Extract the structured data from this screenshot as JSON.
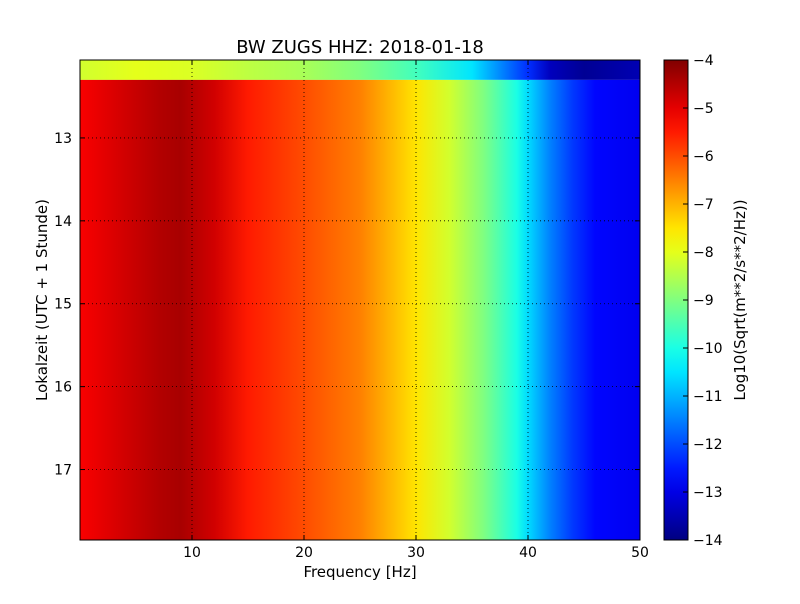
{
  "chart_data": {
    "type": "heatmap",
    "title": "BW ZUGS HHZ: 2018-01-18",
    "xlabel": "Frequency [Hz]",
    "ylabel": "Lokalzeit (UTC + 1 Stunde)",
    "colorbar_label": "Log10(Sqrt(m**2/s**2/Hz))",
    "colormap": "jet",
    "grid": true,
    "xlim": [
      0,
      50
    ],
    "ylim": [
      17.85,
      12.06
    ],
    "clim": [
      -14,
      -4
    ],
    "x_ticks": [
      10,
      20,
      30,
      40,
      50
    ],
    "x_tick_labels": [
      "10",
      "20",
      "30",
      "40",
      "50"
    ],
    "y_ticks": [
      13,
      14,
      15,
      16,
      17
    ],
    "y_tick_labels": [
      "13",
      "14",
      "15",
      "16",
      "17"
    ],
    "colorbar_ticks": [
      -4,
      -5,
      -6,
      -7,
      -8,
      -9,
      -10,
      -11,
      -12,
      -13,
      -14
    ],
    "colorbar_tick_labels": [
      "−4",
      "−5",
      "−6",
      "−7",
      "−8",
      "−9",
      "−10",
      "−11",
      "−12",
      "−13",
      "−14"
    ],
    "band_rows": [
      {
        "time_start": 12.06,
        "time_end": 12.3,
        "freq_hz": [
          0,
          5,
          10,
          15,
          20,
          25,
          30,
          35,
          40,
          42,
          45,
          50
        ],
        "value": [
          -8.2,
          -8.0,
          -8.1,
          -8.4,
          -8.6,
          -9.0,
          -9.6,
          -10.5,
          -12.3,
          -13.4,
          -13.8,
          -13.5
        ]
      },
      {
        "time_start": 12.3,
        "time_end": 17.85,
        "freq_hz": [
          0,
          3,
          7,
          9,
          12,
          15,
          20,
          25,
          30,
          33,
          36,
          39,
          40,
          42,
          44,
          46,
          50
        ],
        "value": [
          -5.2,
          -4.9,
          -4.5,
          -4.4,
          -4.8,
          -5.5,
          -6.0,
          -6.5,
          -7.5,
          -8.2,
          -9.0,
          -10.0,
          -10.6,
          -11.5,
          -12.2,
          -12.7,
          -12.9
        ]
      }
    ]
  }
}
